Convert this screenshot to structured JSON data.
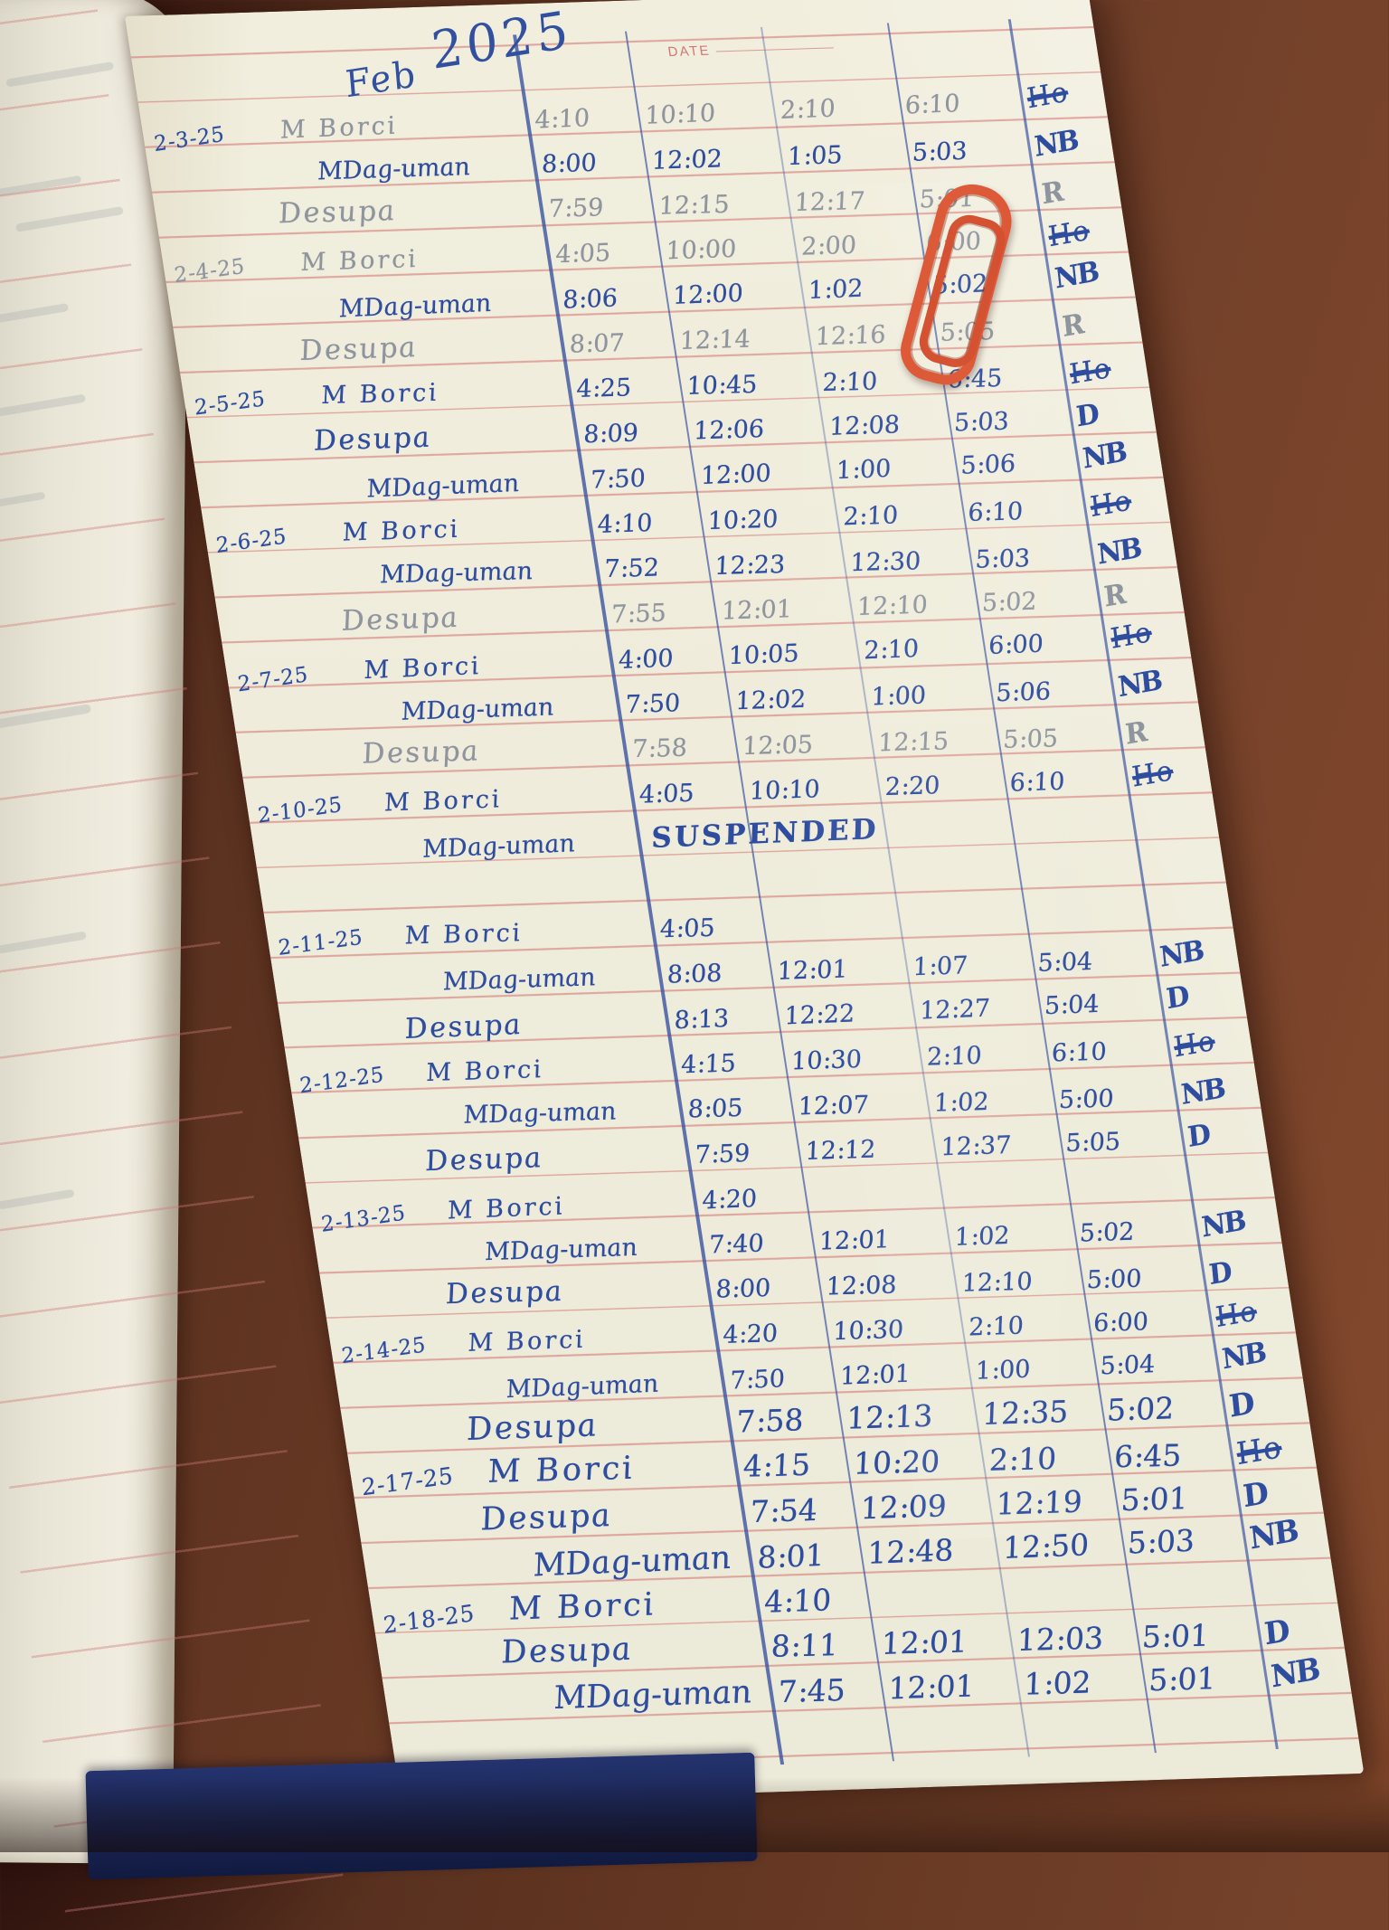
{
  "page": {
    "month": "Feb",
    "year": "2025",
    "date_label": "DATE",
    "description": "Handwritten attendance / time register page for February 2025"
  },
  "colors": {
    "pen_ink": "#2e4d9f",
    "pencil": "#8f959e",
    "rule_red": "#ce6262",
    "column_line_blue": "#425aa5",
    "paper": "#f1eedd",
    "wood_table": "#74412a",
    "paper_clip": "#db4f2b",
    "cover_navy": "#1c2a60"
  },
  "rows": [
    {
      "date": "2-3-25",
      "date_ink": "pen",
      "name": "M Borci",
      "ink": "pencil",
      "t1": "4:10",
      "t2": "10:10",
      "t3": "2:10",
      "t4": "6:10",
      "sig": "Ho",
      "sig_crossed": true,
      "sig_ink": "pen"
    },
    {
      "name": "MDag-uman",
      "ink": "pen",
      "t1": "8:00",
      "t2": "12:02",
      "t3": "1:05",
      "t4": "5:03",
      "sig": "NB",
      "sig_ink": "pen"
    },
    {
      "name": "Desupa",
      "ink": "pencil",
      "t1": "7:59",
      "t2": "12:15",
      "t3": "12:17",
      "t4": "5:01",
      "sig": "R",
      "sig_ink": "pencil"
    },
    {
      "date": "2-4-25",
      "date_ink": "pencil",
      "name": "M Borci",
      "ink": "pencil",
      "t1": "4:05",
      "t2": "10:00",
      "t3": "2:00",
      "t4": "6:00",
      "sig": "Ho",
      "sig_crossed": true,
      "sig_ink": "pen"
    },
    {
      "name": "MDag-uman",
      "ink": "pen",
      "t1": "8:06",
      "t2": "12:00",
      "t3": "1:02",
      "t4": "5:02",
      "sig": "NB",
      "sig_ink": "pen"
    },
    {
      "name": "Desupa",
      "ink": "pencil",
      "t1": "8:07",
      "t2": "12:14",
      "t3": "12:16",
      "t4": "5:05",
      "sig": "R",
      "sig_ink": "pencil"
    },
    {
      "date": "2-5-25",
      "date_ink": "pen",
      "name": "M Borci",
      "ink": "pen",
      "t1": "4:25",
      "t2": "10:45",
      "t3": "2:10",
      "t4": "6:45",
      "sig": "Ho",
      "sig_crossed": true,
      "sig_ink": "pen"
    },
    {
      "name": "Desupa",
      "ink": "pen",
      "t1": "8:09",
      "t2": "12:06",
      "t3": "12:08",
      "t4": "5:03",
      "sig": "D",
      "sig_ink": "pen"
    },
    {
      "name": "MDag-uman",
      "ink": "pen",
      "t1": "7:50",
      "t2": "12:00",
      "t3": "1:00",
      "t4": "5:06",
      "sig": "NB",
      "sig_ink": "pen"
    },
    {
      "date": "2-6-25",
      "date_ink": "pen",
      "name": "M Borci",
      "ink": "pen",
      "t1": "4:10",
      "t2": "10:20",
      "t3": "2:10",
      "t4": "6:10",
      "sig": "Ho",
      "sig_crossed": true,
      "sig_ink": "pen"
    },
    {
      "name": "MDag-uman",
      "ink": "pen",
      "t1": "7:52",
      "t2": "12:23",
      "t3": "12:30",
      "t4": "5:03",
      "sig": "NB",
      "sig_ink": "pen"
    },
    {
      "name": "Desupa",
      "ink": "pencil",
      "t1": "7:55",
      "t2": "12:01",
      "t3": "12:10",
      "t4": "5:02",
      "sig": "R",
      "sig_ink": "pencil"
    },
    {
      "date": "2-7-25",
      "date_ink": "pen",
      "name": "M Borci",
      "ink": "pen",
      "t1": "4:00",
      "t2": "10:05",
      "t3": "2:10",
      "t4": "6:00",
      "sig": "Ho",
      "sig_crossed": true,
      "sig_ink": "pen"
    },
    {
      "name": "MDag-uman",
      "ink": "pen",
      "t1": "7:50",
      "t2": "12:02",
      "t3": "1:00",
      "t4": "5:06",
      "sig": "NB",
      "sig_ink": "pen"
    },
    {
      "name": "Desupa",
      "ink": "pencil",
      "t1": "7:58",
      "t2": "12:05",
      "t3": "12:15",
      "t4": "5:05",
      "sig": "R",
      "sig_ink": "pencil"
    },
    {
      "date": "2-10-25",
      "date_ink": "pen",
      "name": "M Borci",
      "ink": "pen",
      "t1": "4:05",
      "t2": "10:10",
      "t3": "2:20",
      "t4": "6:10",
      "sig": "Ho",
      "sig_crossed": true,
      "sig_ink": "pen"
    },
    {
      "name": "MDag-uman",
      "ink": "pen",
      "note": "SUSPENDED"
    },
    {
      "spacer": true
    },
    {
      "date": "2-11-25",
      "date_ink": "pen",
      "name": "M Borci",
      "ink": "pen",
      "t1": "4:05"
    },
    {
      "name": "MDag-uman",
      "ink": "pen",
      "t1": "8:08",
      "t2": "12:01",
      "t3": "1:07",
      "t4": "5:04",
      "sig": "NB",
      "sig_ink": "pen"
    },
    {
      "name": "Desupa",
      "ink": "pen",
      "t1": "8:13",
      "t2": "12:22",
      "t3": "12:27",
      "t4": "5:04",
      "sig": "D",
      "sig_ink": "pen"
    },
    {
      "date": "2-12-25",
      "date_ink": "pen",
      "name": "M Borci",
      "ink": "pen",
      "t1": "4:15",
      "t2": "10:30",
      "t3": "2:10",
      "t4": "6:10",
      "sig": "Ho",
      "sig_crossed": true,
      "sig_ink": "pen"
    },
    {
      "name": "MDag-uman",
      "ink": "pen",
      "t1": "8:05",
      "t2": "12:07",
      "t3": "1:02",
      "t4": "5:00",
      "sig": "NB",
      "sig_ink": "pen"
    },
    {
      "name": "Desupa",
      "ink": "pen",
      "t1": "7:59",
      "t2": "12:12",
      "t3": "12:37",
      "t4": "5:05",
      "sig": "D",
      "sig_ink": "pen"
    },
    {
      "date": "2-13-25",
      "date_ink": "pen",
      "name": "M Borci",
      "ink": "pen",
      "t1": "4:20"
    },
    {
      "name": "MDag-uman",
      "ink": "pen",
      "t1": "7:40",
      "t2": "12:01",
      "t3": "1:02",
      "t4": "5:02",
      "sig": "NB",
      "sig_ink": "pen"
    },
    {
      "name": "Desupa",
      "ink": "pen",
      "t1": "8:00",
      "t2": "12:08",
      "t3": "12:10",
      "t4": "5:00",
      "sig": "D",
      "sig_ink": "pen"
    },
    {
      "date": "2-14-25",
      "date_ink": "pen",
      "name": "M Borci",
      "ink": "pen",
      "t1": "4:20",
      "t2": "10:30",
      "t3": "2:10",
      "t4": "6:00",
      "sig": "Ho",
      "sig_crossed": true,
      "sig_ink": "pen"
    },
    {
      "name": "MDag-uman",
      "ink": "pen",
      "t1": "7:50",
      "t2": "12:01",
      "t3": "1:00",
      "t4": "5:04",
      "sig": "NB",
      "sig_ink": "pen"
    },
    {
      "name": "Desupa",
      "ink": "pen",
      "t1": "7:58",
      "t2": "12:13",
      "t3": "12:35",
      "t4": "5:02",
      "sig": "D",
      "sig_ink": "pen"
    },
    {
      "date": "2-17-25",
      "date_ink": "pen",
      "name": "M Borci",
      "ink": "pen",
      "t1": "4:15",
      "t2": "10:20",
      "t3": "2:10",
      "t4": "6:45",
      "sig": "Ho",
      "sig_crossed": true,
      "sig_ink": "pen"
    },
    {
      "name": "Desupa",
      "ink": "pen",
      "t1": "7:54",
      "t2": "12:09",
      "t3": "12:19",
      "t4": "5:01",
      "sig": "D",
      "sig_ink": "pen"
    },
    {
      "name": "MDag-uman",
      "ink": "pen",
      "t1": "8:01",
      "t2": "12:48",
      "t3": "12:50",
      "t4": "5:03",
      "sig": "NB",
      "sig_ink": "pen"
    },
    {
      "date": "2-18-25",
      "date_ink": "pen",
      "name": "M Borci",
      "ink": "pen",
      "t1": "4:10"
    },
    {
      "name": "Desupa",
      "ink": "pen",
      "t1": "8:11",
      "t2": "12:01",
      "t3": "12:03",
      "t4": "5:01",
      "sig": "D",
      "sig_ink": "pen"
    },
    {
      "name": "MDag-uman",
      "ink": "pen",
      "t1": "7:45",
      "t2": "12:01",
      "t3": "1:02",
      "t4": "5:01",
      "sig": "NB",
      "sig_ink": "pen"
    }
  ]
}
